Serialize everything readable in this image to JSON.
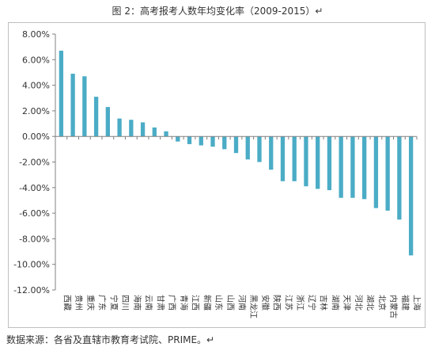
{
  "title": "图 2：高考报考人数年均变化率（2009-2015）↵",
  "source_note": "数据来源：各省及直辖市教育考试院、PRIME。↵",
  "colors": {
    "bar": "#4BACC6",
    "axis": "#808080",
    "text": "#333333"
  },
  "chart_data": {
    "type": "bar",
    "title": "图 2：高考报考人数年均变化率（2009-2015）",
    "xlabel": "",
    "ylabel": "",
    "ylim": [
      -12,
      8
    ],
    "y_ticks": [
      8,
      6,
      4,
      2,
      0,
      -2,
      -4,
      -6,
      -8,
      -10,
      -12
    ],
    "y_tick_labels": [
      "8.00%",
      "6.00%",
      "4.00%",
      "2.00%",
      "0.00%",
      "-2.00%",
      "-4.00%",
      "-6.00%",
      "-8.00%",
      "-10.00%",
      "-12.00%"
    ],
    "grid": false,
    "legend": "none",
    "categories": [
      "西藏",
      "贵州",
      "重庆",
      "广东",
      "宁夏",
      "四川",
      "海南",
      "云南",
      "甘肃",
      "广西",
      "青海",
      "江西",
      "新疆",
      "山东",
      "山西",
      "河南",
      "黑龙江",
      "安徽",
      "陕西",
      "江苏",
      "浙江",
      "辽宁",
      "吉林",
      "湖南",
      "天津",
      "河北",
      "湖北",
      "北京",
      "内蒙古",
      "福建",
      "上海"
    ],
    "values": [
      6.7,
      4.9,
      4.7,
      3.1,
      2.3,
      1.4,
      1.3,
      1.1,
      0.7,
      0.4,
      -0.4,
      -0.6,
      -0.7,
      -0.8,
      -1.0,
      -1.3,
      -1.8,
      -2.0,
      -2.6,
      -3.5,
      -3.5,
      -3.9,
      -4.1,
      -4.2,
      -4.8,
      -4.8,
      -4.9,
      -5.6,
      -5.8,
      -6.5,
      -9.3
    ]
  }
}
